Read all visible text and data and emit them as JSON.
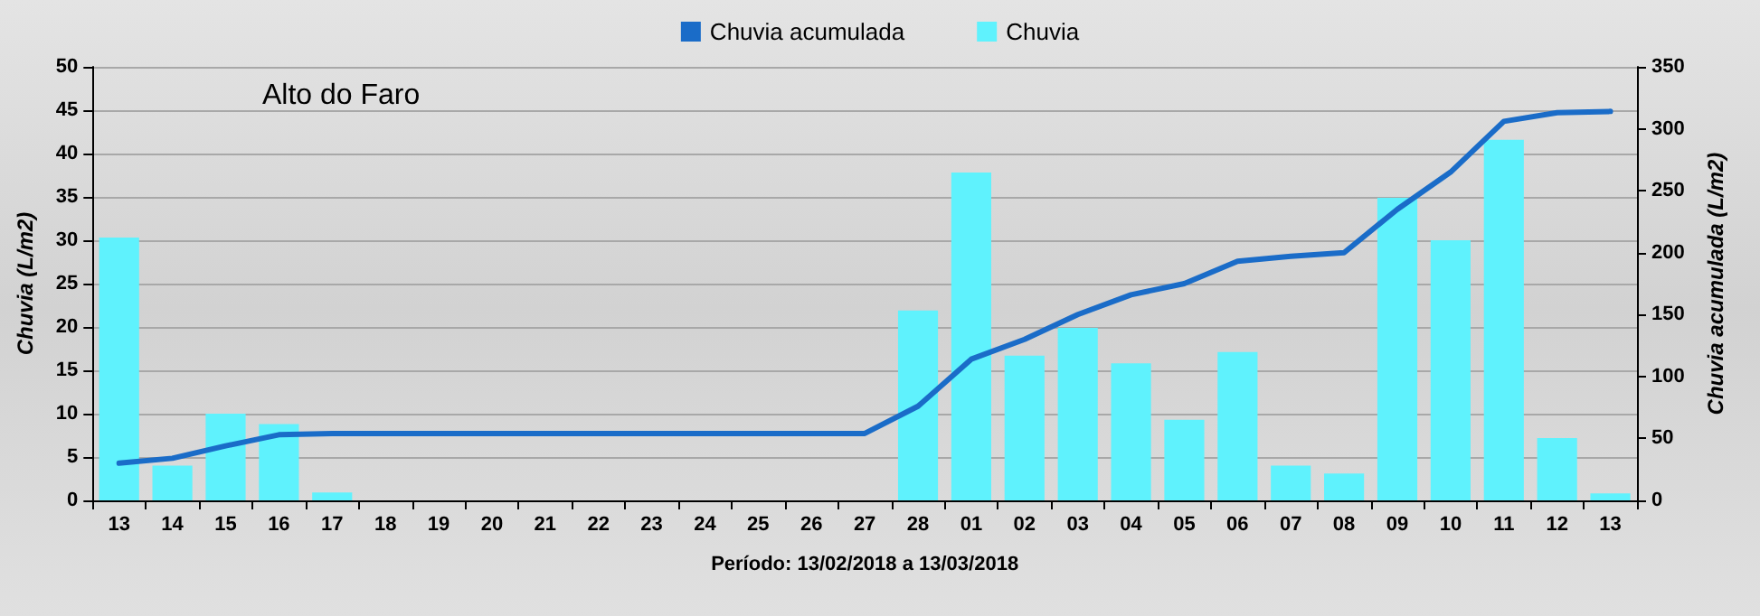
{
  "chart_data": {
    "type": "bar",
    "title": "Alto do Faro",
    "xlabel": "Período: 13/02/2018 a 13/03/2018",
    "ylabel": "Chuvia (L/m2)",
    "y2label": "Chuvia acumulada (L/m2)",
    "categories": [
      "13",
      "14",
      "15",
      "16",
      "17",
      "18",
      "19",
      "20",
      "21",
      "22",
      "23",
      "24",
      "25",
      "26",
      "27",
      "28",
      "01",
      "02",
      "03",
      "04",
      "05",
      "06",
      "07",
      "08",
      "09",
      "10",
      "11",
      "12",
      "13"
    ],
    "series": [
      {
        "name": "Chuvia acumulada",
        "type": "line",
        "axis": "y2",
        "color": "#1a6cc8",
        "values": [
          30,
          34,
          44,
          53,
          54,
          54,
          54,
          54,
          54,
          54,
          54,
          54,
          54,
          54,
          54,
          76,
          114,
          130,
          150,
          166,
          175,
          193,
          197,
          200,
          235,
          265,
          306,
          313,
          314
        ]
      },
      {
        "name": "Chuvia",
        "color": "#5ff2fd",
        "values": [
          30.3,
          4,
          10,
          8.8,
          0.9,
          0,
          0,
          0,
          0,
          0,
          0,
          0,
          0,
          0,
          0,
          21.9,
          37.8,
          16.7,
          19.9,
          15.8,
          9.3,
          17.1,
          4,
          3.1,
          34.9,
          30,
          41.6,
          7.2,
          0.8
        ]
      }
    ],
    "ylim": [
      0,
      50
    ],
    "yticks": [
      0,
      5,
      10,
      15,
      20,
      25,
      30,
      35,
      40,
      45,
      50
    ],
    "y2lim": [
      0,
      350
    ],
    "y2ticks": [
      0,
      50,
      100,
      150,
      200,
      250,
      300,
      350
    ],
    "grid": "y",
    "legend": "top",
    "marker": "none",
    "line_style": "solid"
  }
}
